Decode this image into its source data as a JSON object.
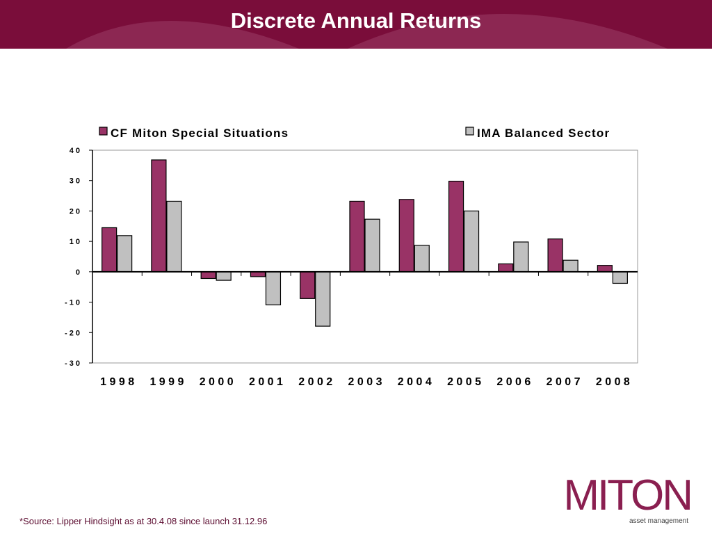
{
  "header": {
    "title": "Discrete Annual Returns"
  },
  "footer": {
    "source": "*Source: Lipper Hindsight as at  30.4.08 since launch 31.12.96"
  },
  "logo": {
    "name": "MITON",
    "tagline": "asset management"
  },
  "colors": {
    "header_bg": "#7a0d3a",
    "series1": "#993366",
    "series2": "#c0c0c0"
  },
  "chart_data": {
    "type": "bar",
    "categories": [
      "1998",
      "1999",
      "2000",
      "2001",
      "2002",
      "2003",
      "2004",
      "2005",
      "2006",
      "2007",
      "2008"
    ],
    "series": [
      {
        "name": "CF Miton Special Situations",
        "color": "#993366",
        "values": [
          14.5,
          36.8,
          -2.2,
          -1.6,
          -8.8,
          23.2,
          23.8,
          29.8,
          2.6,
          10.8,
          2.1
        ]
      },
      {
        "name": "IMA Balanced Sector",
        "color": "#c0c0c0",
        "values": [
          11.9,
          23.2,
          -2.8,
          -10.9,
          -17.9,
          17.3,
          8.7,
          20.0,
          9.8,
          3.8,
          -3.8
        ]
      }
    ],
    "yticks": [
      40,
      30,
      20,
      10,
      0,
      -10,
      -20,
      -30
    ],
    "ylim": [
      -30,
      40
    ],
    "legend": "top",
    "grid": false
  }
}
